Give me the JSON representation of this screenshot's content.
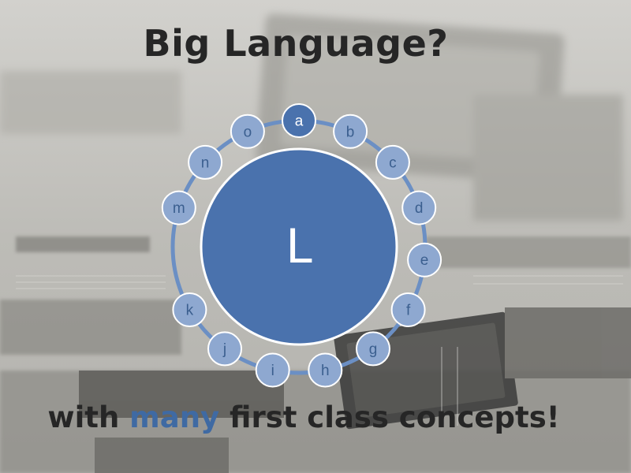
{
  "slide": {
    "title": "Big Language?",
    "subtitle_parts": {
      "before": "with ",
      "emphasis": "many",
      "after": " first class concepts!"
    },
    "colors": {
      "accent": "#3f6aa3",
      "core_fill": "#4a72ad",
      "node_fill": "#8ea8d0",
      "node_fill_dark": "#4a72ad",
      "ring": "#6b8fc4",
      "text_dark": "#262626"
    }
  },
  "diagram": {
    "core_label": "L",
    "nodes": [
      {
        "id": "a",
        "label": "a",
        "style": "dark"
      },
      {
        "id": "b",
        "label": "b",
        "style": "light"
      },
      {
        "id": "c",
        "label": "c",
        "style": "light"
      },
      {
        "id": "d",
        "label": "d",
        "style": "light"
      },
      {
        "id": "e",
        "label": "e",
        "style": "light"
      },
      {
        "id": "f",
        "label": "f",
        "style": "light"
      },
      {
        "id": "g",
        "label": "g",
        "style": "light"
      },
      {
        "id": "h",
        "label": "h",
        "style": "light"
      },
      {
        "id": "i",
        "label": "i",
        "style": "light"
      },
      {
        "id": "j",
        "label": "j",
        "style": "light"
      },
      {
        "id": "k",
        "label": "k",
        "style": "light"
      },
      {
        "id": "m",
        "label": "m",
        "style": "light"
      },
      {
        "id": "n",
        "label": "n",
        "style": "light"
      },
      {
        "id": "o",
        "label": "o",
        "style": "light"
      }
    ]
  }
}
